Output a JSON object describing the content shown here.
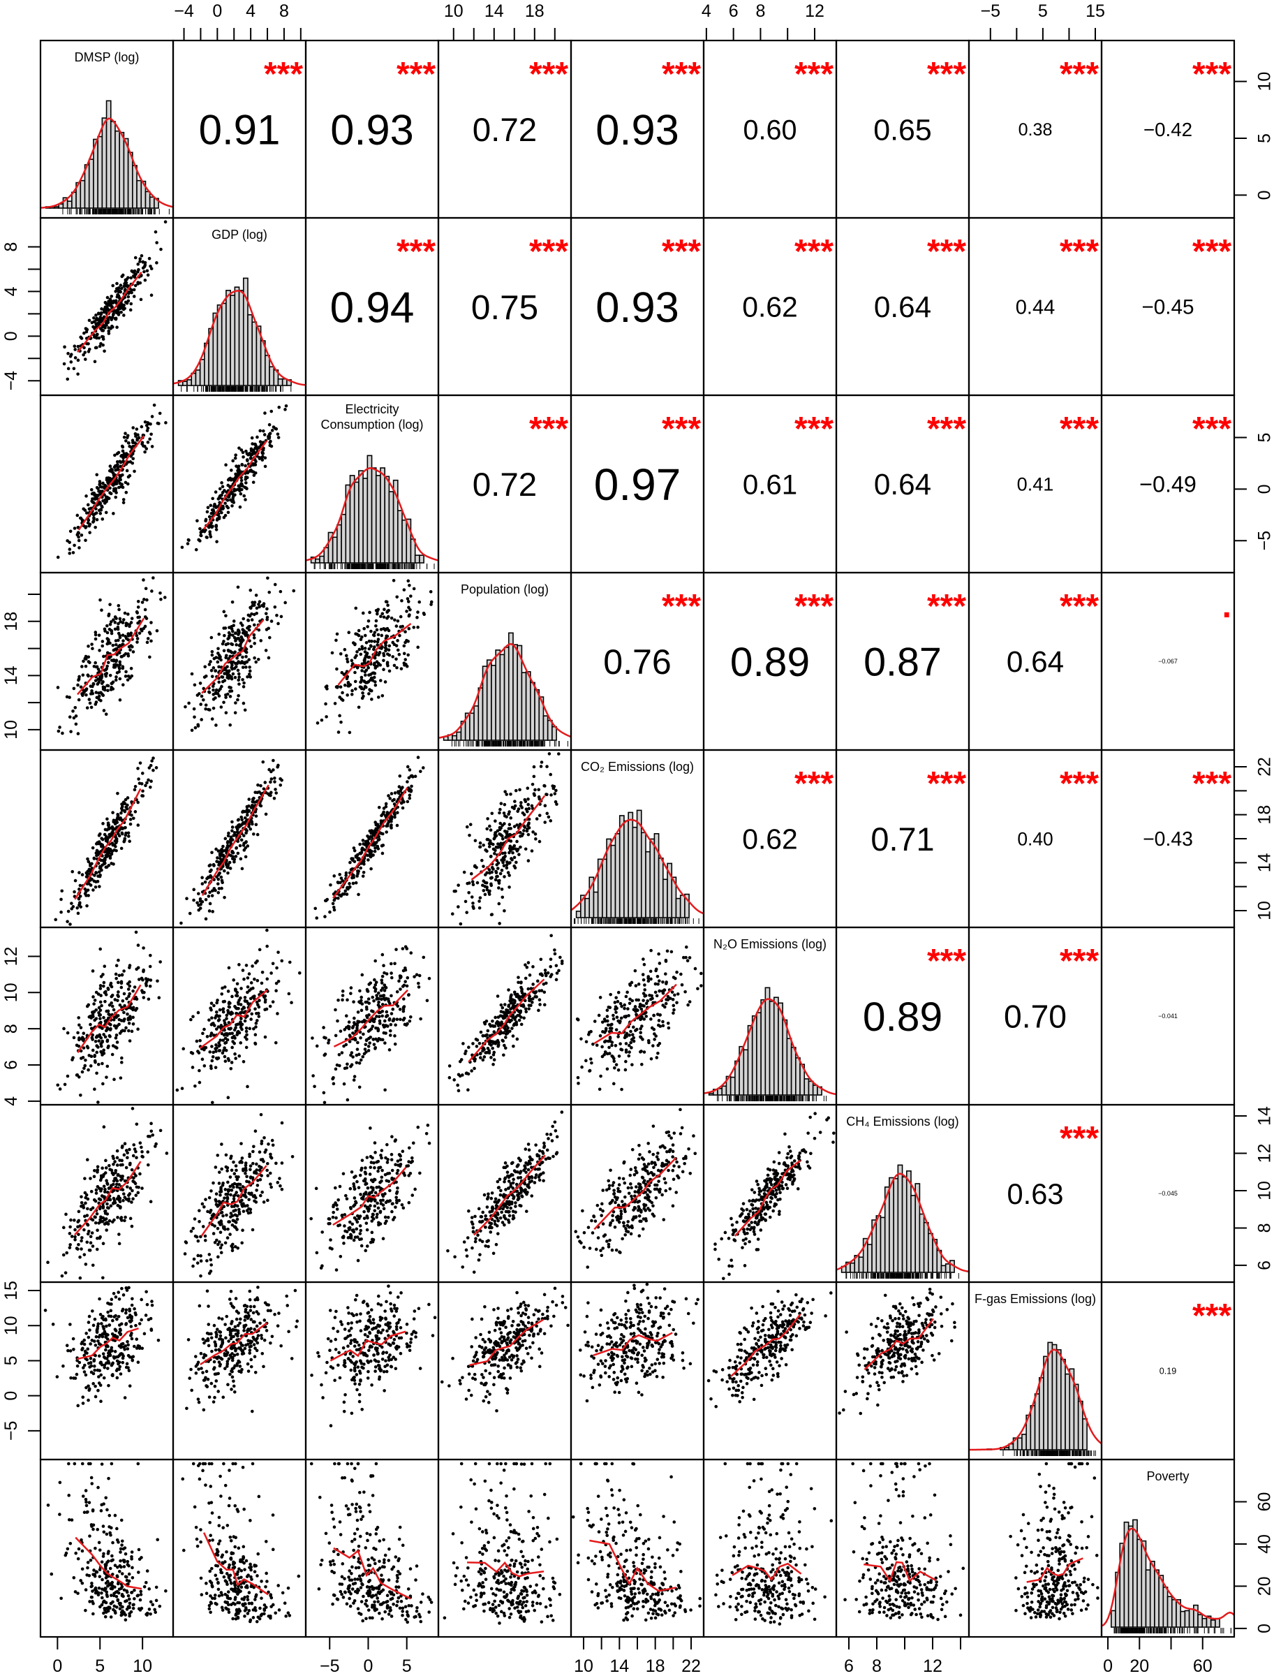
{
  "chart_data": {
    "type": "scatter-matrix",
    "title": "",
    "variables": [
      {
        "name_lines": [
          "DMSP (log)"
        ],
        "range": [
          -2,
          13.6
        ],
        "mean": 6.2,
        "sd": 2.4
      },
      {
        "name_lines": [
          "GDP (log)"
        ],
        "range": [
          -5.3,
          10.6
        ],
        "mean": 2.2,
        "sd": 2.5
      },
      {
        "name_lines": [
          "Electricity",
          "Consumption (log)"
        ],
        "range": [
          -8.1,
          9.1
        ],
        "mean": 0.5,
        "sd": 3.0
      },
      {
        "name_lines": [
          "Population (log)"
        ],
        "range": [
          8.5,
          21.6
        ],
        "mean": 15.4,
        "sd": 2.3
      },
      {
        "name_lines": [
          "CO₂ Emissions (log)"
        ],
        "range": [
          8.6,
          23.4
        ],
        "mean": 15.8,
        "sd": 3.0
      },
      {
        "name_lines": [
          "N₂O Emissions (log)"
        ],
        "range": [
          3.8,
          13.6
        ],
        "mean": 8.6,
        "sd": 1.6
      },
      {
        "name_lines": [
          "CH₄ Emissions (log)"
        ],
        "range": [
          5.1,
          14.6
        ],
        "mean": 9.7,
        "sd": 1.6
      },
      {
        "name_lines": [
          "F-gas Emissions (log)"
        ],
        "range": [
          -9.1,
          16.2
        ],
        "mean": 7.5,
        "sd": 3.5
      },
      {
        "name_lines": [
          "Poverty"
        ],
        "range": [
          -4,
          80
        ],
        "mean": 28,
        "sd": 18,
        "skewed": true
      }
    ],
    "correlations": [
      {
        "row": 0,
        "col": 1,
        "r": "0.91",
        "stars": "***"
      },
      {
        "row": 0,
        "col": 2,
        "r": "0.93",
        "stars": "***"
      },
      {
        "row": 0,
        "col": 3,
        "r": "0.72",
        "stars": "***"
      },
      {
        "row": 0,
        "col": 4,
        "r": "0.93",
        "stars": "***"
      },
      {
        "row": 0,
        "col": 5,
        "r": "0.60",
        "stars": "***"
      },
      {
        "row": 0,
        "col": 6,
        "r": "0.65",
        "stars": "***"
      },
      {
        "row": 0,
        "col": 7,
        "r": "0.38",
        "stars": "***"
      },
      {
        "row": 0,
        "col": 8,
        "r": "−0.42",
        "stars": "***"
      },
      {
        "row": 1,
        "col": 2,
        "r": "0.94",
        "stars": "***"
      },
      {
        "row": 1,
        "col": 3,
        "r": "0.75",
        "stars": "***"
      },
      {
        "row": 1,
        "col": 4,
        "r": "0.93",
        "stars": "***"
      },
      {
        "row": 1,
        "col": 5,
        "r": "0.62",
        "stars": "***"
      },
      {
        "row": 1,
        "col": 6,
        "r": "0.64",
        "stars": "***"
      },
      {
        "row": 1,
        "col": 7,
        "r": "0.44",
        "stars": "***"
      },
      {
        "row": 1,
        "col": 8,
        "r": "−0.45",
        "stars": "***"
      },
      {
        "row": 2,
        "col": 3,
        "r": "0.72",
        "stars": "***"
      },
      {
        "row": 2,
        "col": 4,
        "r": "0.97",
        "stars": "***"
      },
      {
        "row": 2,
        "col": 5,
        "r": "0.61",
        "stars": "***"
      },
      {
        "row": 2,
        "col": 6,
        "r": "0.64",
        "stars": "***"
      },
      {
        "row": 2,
        "col": 7,
        "r": "0.41",
        "stars": "***"
      },
      {
        "row": 2,
        "col": 8,
        "r": "−0.49",
        "stars": "***"
      },
      {
        "row": 3,
        "col": 4,
        "r": "0.76",
        "stars": "***"
      },
      {
        "row": 3,
        "col": 5,
        "r": "0.89",
        "stars": "***"
      },
      {
        "row": 3,
        "col": 6,
        "r": "0.87",
        "stars": "***"
      },
      {
        "row": 3,
        "col": 7,
        "r": "0.64",
        "stars": "***"
      },
      {
        "row": 3,
        "col": 8,
        "r": "−0.067",
        "stars": "."
      },
      {
        "row": 4,
        "col": 5,
        "r": "0.62",
        "stars": "***"
      },
      {
        "row": 4,
        "col": 6,
        "r": "0.71",
        "stars": "***"
      },
      {
        "row": 4,
        "col": 7,
        "r": "0.40",
        "stars": "***"
      },
      {
        "row": 4,
        "col": 8,
        "r": "−0.43",
        "stars": "***"
      },
      {
        "row": 5,
        "col": 6,
        "r": "0.89",
        "stars": "***"
      },
      {
        "row": 5,
        "col": 7,
        "r": "0.70",
        "stars": "***"
      },
      {
        "row": 5,
        "col": 8,
        "r": "−0.041",
        "stars": ""
      },
      {
        "row": 6,
        "col": 7,
        "r": "0.63",
        "stars": "***"
      },
      {
        "row": 6,
        "col": 8,
        "r": "−0.045",
        "stars": ""
      },
      {
        "row": 7,
        "col": 8,
        "r": "0.19",
        "stars": "***"
      }
    ],
    "axes": [
      {
        "side": "top",
        "var": 1,
        "ticks": [
          -4,
          -2,
          0,
          2,
          4,
          6,
          8,
          10
        ],
        "labels": [
          [
            -4,
            "−4"
          ],
          [
            0,
            "0"
          ],
          [
            4,
            "4"
          ],
          [
            8,
            "8"
          ]
        ]
      },
      {
        "side": "top",
        "var": 3,
        "ticks": [
          10,
          12,
          14,
          16,
          18,
          20
        ],
        "labels": [
          [
            10,
            "10"
          ],
          [
            14,
            "14"
          ],
          [
            18,
            "18"
          ]
        ]
      },
      {
        "side": "top",
        "var": 5,
        "ticks": [
          4,
          6,
          8,
          10,
          12
        ],
        "labels": [
          [
            4,
            "4"
          ],
          [
            6,
            "6"
          ],
          [
            8,
            "8"
          ],
          [
            12,
            "12"
          ]
        ]
      },
      {
        "side": "top",
        "var": 7,
        "ticks": [
          -5,
          0,
          5,
          10,
          15
        ],
        "labels": [
          [
            -5,
            "−5"
          ],
          [
            5,
            "5"
          ],
          [
            15,
            "15"
          ]
        ]
      },
      {
        "side": "bottom",
        "var": 0,
        "ticks": [
          0,
          5,
          10
        ],
        "labels": [
          [
            0,
            "0"
          ],
          [
            5,
            "5"
          ],
          [
            10,
            "10"
          ]
        ]
      },
      {
        "side": "bottom",
        "var": 2,
        "ticks": [
          -5,
          0,
          5
        ],
        "labels": [
          [
            -5,
            "−5"
          ],
          [
            0,
            "0"
          ],
          [
            5,
            "5"
          ]
        ]
      },
      {
        "side": "bottom",
        "var": 4,
        "ticks": [
          10,
          12,
          14,
          16,
          18,
          20,
          22
        ],
        "labels": [
          [
            10,
            "10"
          ],
          [
            14,
            "14"
          ],
          [
            18,
            "18"
          ],
          [
            22,
            "22"
          ]
        ]
      },
      {
        "side": "bottom",
        "var": 6,
        "ticks": [
          6,
          8,
          10,
          12,
          14
        ],
        "labels": [
          [
            6,
            "6"
          ],
          [
            8,
            "8"
          ],
          [
            12,
            "12"
          ]
        ]
      },
      {
        "side": "bottom",
        "var": 8,
        "ticks": [
          0,
          20,
          40,
          60
        ],
        "labels": [
          [
            0,
            "0"
          ],
          [
            20,
            "20"
          ],
          [
            60,
            "60"
          ]
        ]
      },
      {
        "side": "left",
        "var": 1,
        "ticks": [
          -4,
          -2,
          0,
          2,
          4,
          6,
          8
        ],
        "labels": [
          [
            -4,
            "−4"
          ],
          [
            0,
            "0"
          ],
          [
            4,
            "4"
          ],
          [
            8,
            "8"
          ]
        ]
      },
      {
        "side": "left",
        "var": 3,
        "ticks": [
          10,
          12,
          14,
          16,
          18,
          20
        ],
        "labels": [
          [
            10,
            "10"
          ],
          [
            14,
            "14"
          ],
          [
            18,
            "18"
          ]
        ]
      },
      {
        "side": "left",
        "var": 5,
        "ticks": [
          4,
          6,
          8,
          10,
          12
        ],
        "labels": [
          [
            4,
            "4"
          ],
          [
            6,
            "6"
          ],
          [
            8,
            "8"
          ],
          [
            10,
            "10"
          ],
          [
            12,
            "12"
          ]
        ]
      },
      {
        "side": "left",
        "var": 7,
        "ticks": [
          -5,
          0,
          5,
          10,
          15
        ],
        "labels": [
          [
            -5,
            "−5"
          ],
          [
            0,
            "0"
          ],
          [
            5,
            "5"
          ],
          [
            10,
            "10"
          ],
          [
            15,
            "15"
          ]
        ]
      },
      {
        "side": "right",
        "var": 0,
        "ticks": [
          0,
          5,
          10
        ],
        "labels": [
          [
            0,
            "0"
          ],
          [
            5,
            "5"
          ],
          [
            10,
            "10"
          ]
        ]
      },
      {
        "side": "right",
        "var": 2,
        "ticks": [
          -5,
          0,
          5
        ],
        "labels": [
          [
            -5,
            "−5"
          ],
          [
            0,
            "0"
          ],
          [
            5,
            "5"
          ]
        ]
      },
      {
        "side": "right",
        "var": 4,
        "ticks": [
          10,
          12,
          14,
          16,
          18,
          20,
          22
        ],
        "labels": [
          [
            10,
            "10"
          ],
          [
            14,
            "14"
          ],
          [
            18,
            "18"
          ],
          [
            22,
            "22"
          ]
        ]
      },
      {
        "side": "right",
        "var": 6,
        "ticks": [
          6,
          8,
          10,
          12,
          14
        ],
        "labels": [
          [
            6,
            "6"
          ],
          [
            8,
            "8"
          ],
          [
            10,
            "10"
          ],
          [
            12,
            "12"
          ],
          [
            14,
            "14"
          ]
        ]
      },
      {
        "side": "right",
        "var": 8,
        "ticks": [
          0,
          20,
          40,
          60
        ],
        "labels": [
          [
            0,
            "0"
          ],
          [
            20,
            "20"
          ],
          [
            40,
            "40"
          ],
          [
            60,
            "60"
          ]
        ]
      }
    ],
    "colors": {
      "points": "#000000",
      "smooth": "#e41a1c",
      "stars": "#ff0000",
      "bars": "#d3d3d3"
    }
  }
}
